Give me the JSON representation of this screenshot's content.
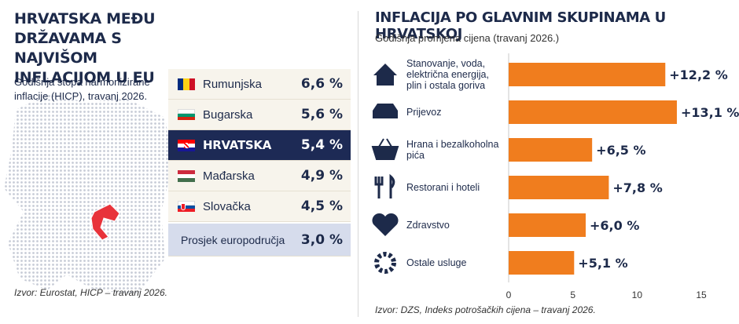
{
  "left": {
    "title": "HRVATSKA MEĐU DRŽAVAMA S NAJVIŠOM INFLACIJOM U EU",
    "subtitle": "Godišnja stopa harmonizirane inflacije (HICP), travanj 2026.",
    "source": "Izvor: Eurostat, HICP – travanj 2026.",
    "map_icon": "europe-map-with-croatia-highlighted"
  },
  "chart_data": [
    {
      "type": "table",
      "rows": [
        {
          "country": "Rumunjska",
          "value": "6,6 %",
          "flag": "romania-flag",
          "highlight": false
        },
        {
          "country": "Bugarska",
          "value": "5,6 %",
          "flag": "bulgaria-flag",
          "highlight": false
        },
        {
          "country": "HRVATSKA",
          "value": "5,4 %",
          "flag": "croatia-flag",
          "highlight": true
        },
        {
          "country": "Mađarska",
          "value": "4,9 %",
          "flag": "hungary-flag",
          "highlight": false
        },
        {
          "country": "Slovačka",
          "value": "4,5 %",
          "flag": "slovakia-flag",
          "highlight": false
        }
      ],
      "average": {
        "label": "Prosjek europodručja",
        "value": "3,0 %"
      }
    },
    {
      "type": "bar",
      "orientation": "horizontal",
      "title": "INFLACIJA PO GLAVNIM SKUPINAMA U HRVATSKOJ",
      "subtitle": "Godišnja promjena cijena (travanj 2026.)",
      "categories": [
        "Stanovanje, voda, električna energija, plin i ostala goriva",
        "Prijevoz",
        "Hrana i bezalkoholna pića",
        "Restorani i hoteli",
        "Zdravstvo",
        "Ostale usluge"
      ],
      "values": [
        12.2,
        13.1,
        6.5,
        7.8,
        6.0,
        5.1
      ],
      "value_labels": [
        "+12,2 %",
        "+13,1 %",
        "+6,5 %",
        "+7,8 %",
        "+6,0 %",
        "+5,1 %"
      ],
      "icons": [
        "house-icon",
        "car-icon",
        "basket-icon",
        "fork-knife-icon",
        "heart-plus-icon",
        "gear-icon"
      ],
      "xlim": [
        0,
        15
      ],
      "xticks": [
        "0",
        "5",
        "10",
        "15"
      ],
      "bar_color": "#f07d1e",
      "source": "Izvor: DZS, Indeks potrošačkih cijena – travanj 2026."
    }
  ],
  "colors": {
    "navy": "#1d2a55",
    "orange": "#f07d1e",
    "beige": "#f7f4ec",
    "avg_row": "#d6dcec"
  }
}
